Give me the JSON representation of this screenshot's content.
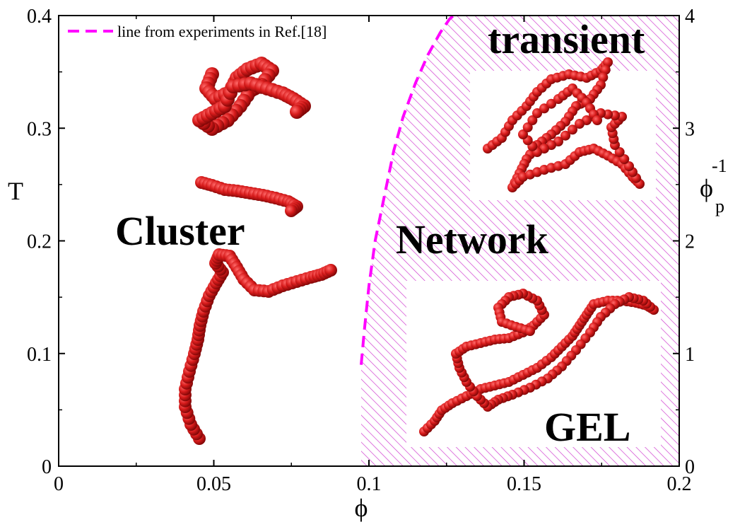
{
  "chart_data": {
    "type": "scatter",
    "title": "",
    "xlabel": "ϕ",
    "ylabel": "T",
    "y2label_main": "ϕ",
    "y2label_sub": "p",
    "y2label_sup": "-1",
    "xlim": [
      0,
      0.2
    ],
    "ylim": [
      0,
      0.4
    ],
    "y2lim": [
      0,
      4
    ],
    "x_ticks": [
      0,
      0.05,
      0.1,
      0.15,
      0.2
    ],
    "x_tick_labels": [
      "0",
      "0.05",
      "0.1",
      "0.15",
      "0.2"
    ],
    "y_ticks": [
      0,
      0.1,
      0.2,
      0.3,
      0.4
    ],
    "y_tick_labels": [
      "0",
      "0.1",
      "0.2",
      "0.3",
      "0.4"
    ],
    "y2_ticks": [
      0,
      1,
      2,
      3,
      4
    ],
    "y2_tick_labels": [
      "0",
      "1",
      "2",
      "3",
      "4"
    ],
    "grid": false,
    "legend": {
      "position": "top-left",
      "entries": [
        "line from experiments in Ref.[18]"
      ]
    },
    "series": [
      {
        "name": "line from experiments in Ref.[18]",
        "style": "dashed",
        "color": "#ff00ff",
        "x": [
          0.0975,
          0.0985,
          0.1,
          0.102,
          0.105,
          0.108,
          0.111,
          0.115,
          0.119,
          0.123,
          0.126,
          0.129
        ],
        "y": [
          0.09,
          0.12,
          0.16,
          0.2,
          0.24,
          0.28,
          0.31,
          0.34,
          0.365,
          0.385,
          0.397,
          0.404
        ]
      }
    ],
    "hatched_region": {
      "color": "#d040d0",
      "description": "network region right of the dashed line"
    },
    "annotations": [
      {
        "text": "Cluster",
        "x": 0.041,
        "y": 0.198
      },
      {
        "text": "Network",
        "x": 0.109,
        "y": 0.193
      },
      {
        "text": "transient",
        "x": 0.139,
        "y": 0.366
      },
      {
        "text": "GEL",
        "x": 0.156,
        "y": 0.024
      }
    ],
    "colors": {
      "line": "#ff00ff",
      "hatch": "#d040d0",
      "beads": "#d81c1c"
    }
  }
}
